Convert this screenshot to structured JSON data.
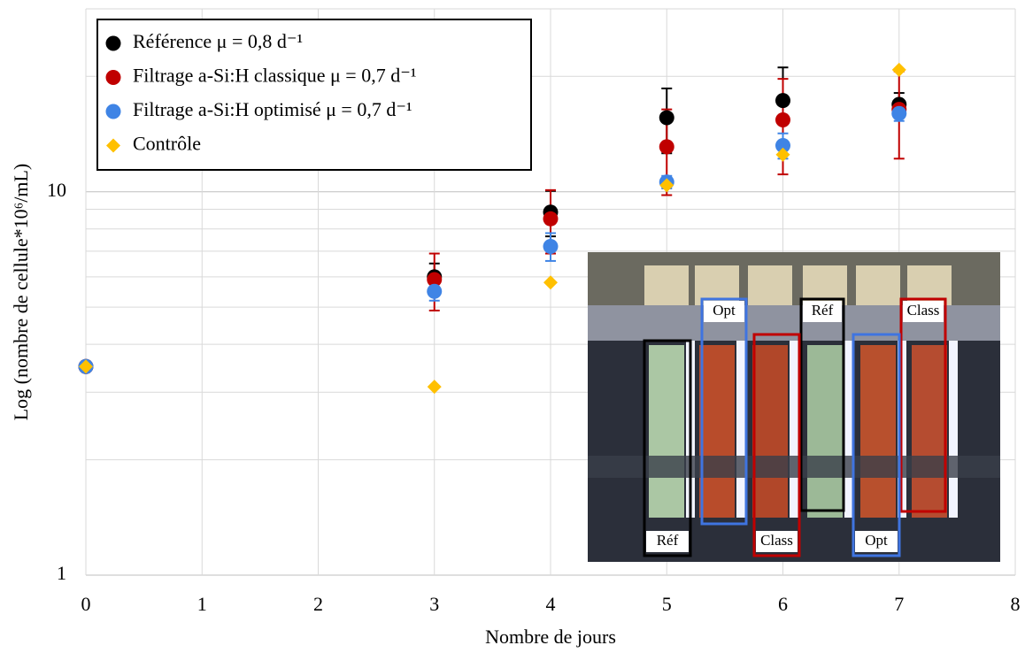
{
  "chart_data": {
    "type": "scatter",
    "xlabel": "Nombre de jours",
    "ylabel": "Log (nombre de cellule*10⁶/mL)",
    "xlim": [
      0,
      8
    ],
    "xticks": [
      0,
      1,
      2,
      3,
      4,
      5,
      6,
      7,
      8
    ],
    "ylim": [
      1,
      30
    ],
    "yticks": [
      1,
      10
    ],
    "yminor": [
      2,
      3,
      4,
      5,
      6,
      7,
      8,
      9,
      20,
      30
    ],
    "log_y": true,
    "grid": true,
    "legend": "upper left",
    "series": [
      {
        "name": "Référence μ = 0,8 d⁻¹",
        "color": "#000000",
        "marker": "circle",
        "x": [
          0,
          3,
          4,
          5,
          6,
          7
        ],
        "values": [
          3.5,
          6.0,
          8.85,
          15.6,
          17.3,
          16.9
        ],
        "errors": [
          0,
          0.5,
          1.2,
          3.0,
          3.8,
          1.2
        ]
      },
      {
        "name": "Filtrage a-Si:H classique μ = 0,7 d⁻¹",
        "color": "#c00000",
        "marker": "circle",
        "x": [
          0,
          3,
          4,
          5,
          6,
          7
        ],
        "values": [
          3.5,
          5.9,
          8.5,
          13.1,
          15.4,
          16.4
        ],
        "errors": [
          0,
          1.0,
          1.6,
          3.3,
          4.3,
          4.2
        ]
      },
      {
        "name": "Filtrage a-Si:H optimisé μ = 0,7 d⁻¹",
        "color": "#3f84e5",
        "marker": "circle",
        "x": [
          0,
          3,
          4,
          5,
          6,
          7
        ],
        "values": [
          3.5,
          5.5,
          7.2,
          10.6,
          13.2,
          16.0
        ],
        "errors": [
          0,
          0.3,
          0.6,
          0.4,
          1.0,
          0.7
        ]
      },
      {
        "name": "Contrôle",
        "color": "#ffc000",
        "marker": "diamond",
        "x": [
          0,
          3,
          4,
          5,
          6,
          7
        ],
        "values": [
          3.5,
          3.1,
          5.8,
          10.4,
          12.5,
          20.8
        ]
      }
    ]
  },
  "inset": {
    "labels": [
      "Opt",
      "Réf",
      "Class",
      "Réf",
      "Class",
      "Opt"
    ]
  }
}
